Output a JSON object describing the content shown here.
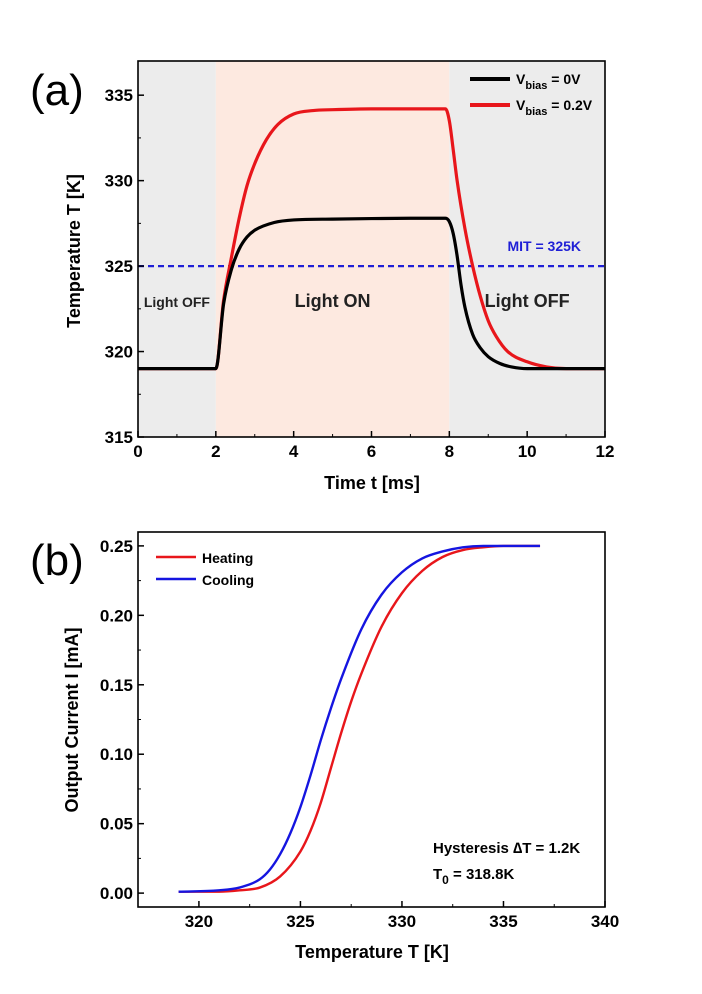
{
  "panels": {
    "a": {
      "label": "(a)"
    },
    "b": {
      "label": "(b)"
    }
  },
  "chart_data": [
    {
      "type": "line",
      "panel": "(a)",
      "xlabel": "Time t [ms]",
      "ylabel": "Temperature T [K]",
      "xlim": [
        0,
        12
      ],
      "ylim": [
        315,
        337
      ],
      "xticks": [
        0,
        2,
        4,
        6,
        8,
        10,
        12
      ],
      "yticks": [
        315,
        320,
        325,
        330,
        335
      ],
      "legend_position": "top-right",
      "series": [
        {
          "name": "V_bias = 0V",
          "legend_main": "V",
          "legend_sub": "bias",
          "legend_rest": " = 0V",
          "color": "#000000",
          "x": [
            0,
            2,
            2.2,
            2.4,
            2.6,
            2.8,
            3.0,
            3.5,
            4.0,
            5,
            6,
            7,
            7.9,
            8.0,
            8.1,
            8.2,
            8.3,
            8.4,
            8.6,
            8.8,
            9.0,
            9.3,
            9.6,
            10,
            11,
            12
          ],
          "y": [
            319,
            319,
            322.8,
            324.8,
            326.0,
            326.7,
            327.1,
            327.55,
            327.7,
            327.75,
            327.78,
            327.8,
            327.8,
            327.6,
            326.9,
            325.6,
            323.9,
            322.6,
            321.0,
            320.2,
            319.7,
            319.3,
            319.1,
            319.0,
            319.0,
            319.0
          ]
        },
        {
          "name": "V_bias = 0.2V",
          "legend_main": "V",
          "legend_sub": "bias",
          "legend_rest": " = 0.2V",
          "color": "#e8161b",
          "x": [
            0,
            2,
            2.2,
            2.4,
            2.6,
            2.8,
            3.0,
            3.3,
            3.6,
            4.0,
            4.5,
            5,
            6,
            7,
            7.9,
            8.0,
            8.1,
            8.2,
            8.4,
            8.6,
            8.8,
            9.0,
            9.2,
            9.5,
            10,
            10.5,
            11,
            12
          ],
          "y": [
            319,
            319,
            323.0,
            325.5,
            327.8,
            329.7,
            331.0,
            332.4,
            333.3,
            333.9,
            334.1,
            334.15,
            334.2,
            334.2,
            334.2,
            333.5,
            331.8,
            330.0,
            327.2,
            325.0,
            323.2,
            321.8,
            320.9,
            320.0,
            319.4,
            319.1,
            319.0,
            319.0
          ]
        }
      ],
      "reference_line": {
        "y": 325,
        "label": "MIT = 325K",
        "color": "#1f1fd6"
      },
      "regions": [
        {
          "x_from": 0,
          "x_to": 2,
          "label": "Light OFF",
          "color": "#ececec"
        },
        {
          "x_from": 2,
          "x_to": 8,
          "label": "Light ON",
          "color": "#fde9e0"
        },
        {
          "x_from": 8,
          "x_to": 12,
          "label": "Light OFF",
          "color": "#ececec"
        }
      ]
    },
    {
      "type": "line",
      "panel": "(b)",
      "xlabel": "Temperature T [K]",
      "ylabel": "Output Current I [mA]",
      "xlim": [
        317,
        340
      ],
      "ylim": [
        -0.01,
        0.26
      ],
      "xticks": [
        320,
        325,
        330,
        335,
        340
      ],
      "yticks": [
        0.0,
        0.05,
        0.1,
        0.15,
        0.2,
        0.25
      ],
      "ytick_labels": [
        "0.00",
        "0.05",
        "0.10",
        "0.15",
        "0.20",
        "0.25"
      ],
      "legend_position": "top-left",
      "series": [
        {
          "name": "Heating",
          "color": "#e8161b",
          "x": [
            319,
            321,
            322,
            323,
            324,
            325,
            325.5,
            326,
            326.5,
            327,
            327.5,
            328,
            329,
            330,
            331,
            332,
            333,
            334,
            335,
            336,
            336.8
          ],
          "y": [
            0.001,
            0.001,
            0.002,
            0.004,
            0.012,
            0.03,
            0.045,
            0.065,
            0.09,
            0.115,
            0.138,
            0.158,
            0.192,
            0.216,
            0.232,
            0.242,
            0.247,
            0.249,
            0.25,
            0.25,
            0.25
          ]
        },
        {
          "name": "Cooling",
          "color": "#1515e0",
          "x": [
            319,
            321,
            322,
            323,
            323.5,
            324,
            324.5,
            325,
            325.5,
            326,
            326.5,
            327,
            328,
            329,
            330,
            331,
            332,
            333,
            334,
            335,
            336.8
          ],
          "y": [
            0.001,
            0.002,
            0.004,
            0.01,
            0.017,
            0.028,
            0.043,
            0.062,
            0.085,
            0.11,
            0.133,
            0.154,
            0.19,
            0.215,
            0.231,
            0.241,
            0.246,
            0.249,
            0.25,
            0.25,
            0.25
          ]
        }
      ],
      "annotations": {
        "hysteresis": "Hysteresis ∆T = 1.2K",
        "t0_main": "T",
        "t0_sub": "0",
        "t0_rest": " = 318.8K"
      }
    }
  ]
}
